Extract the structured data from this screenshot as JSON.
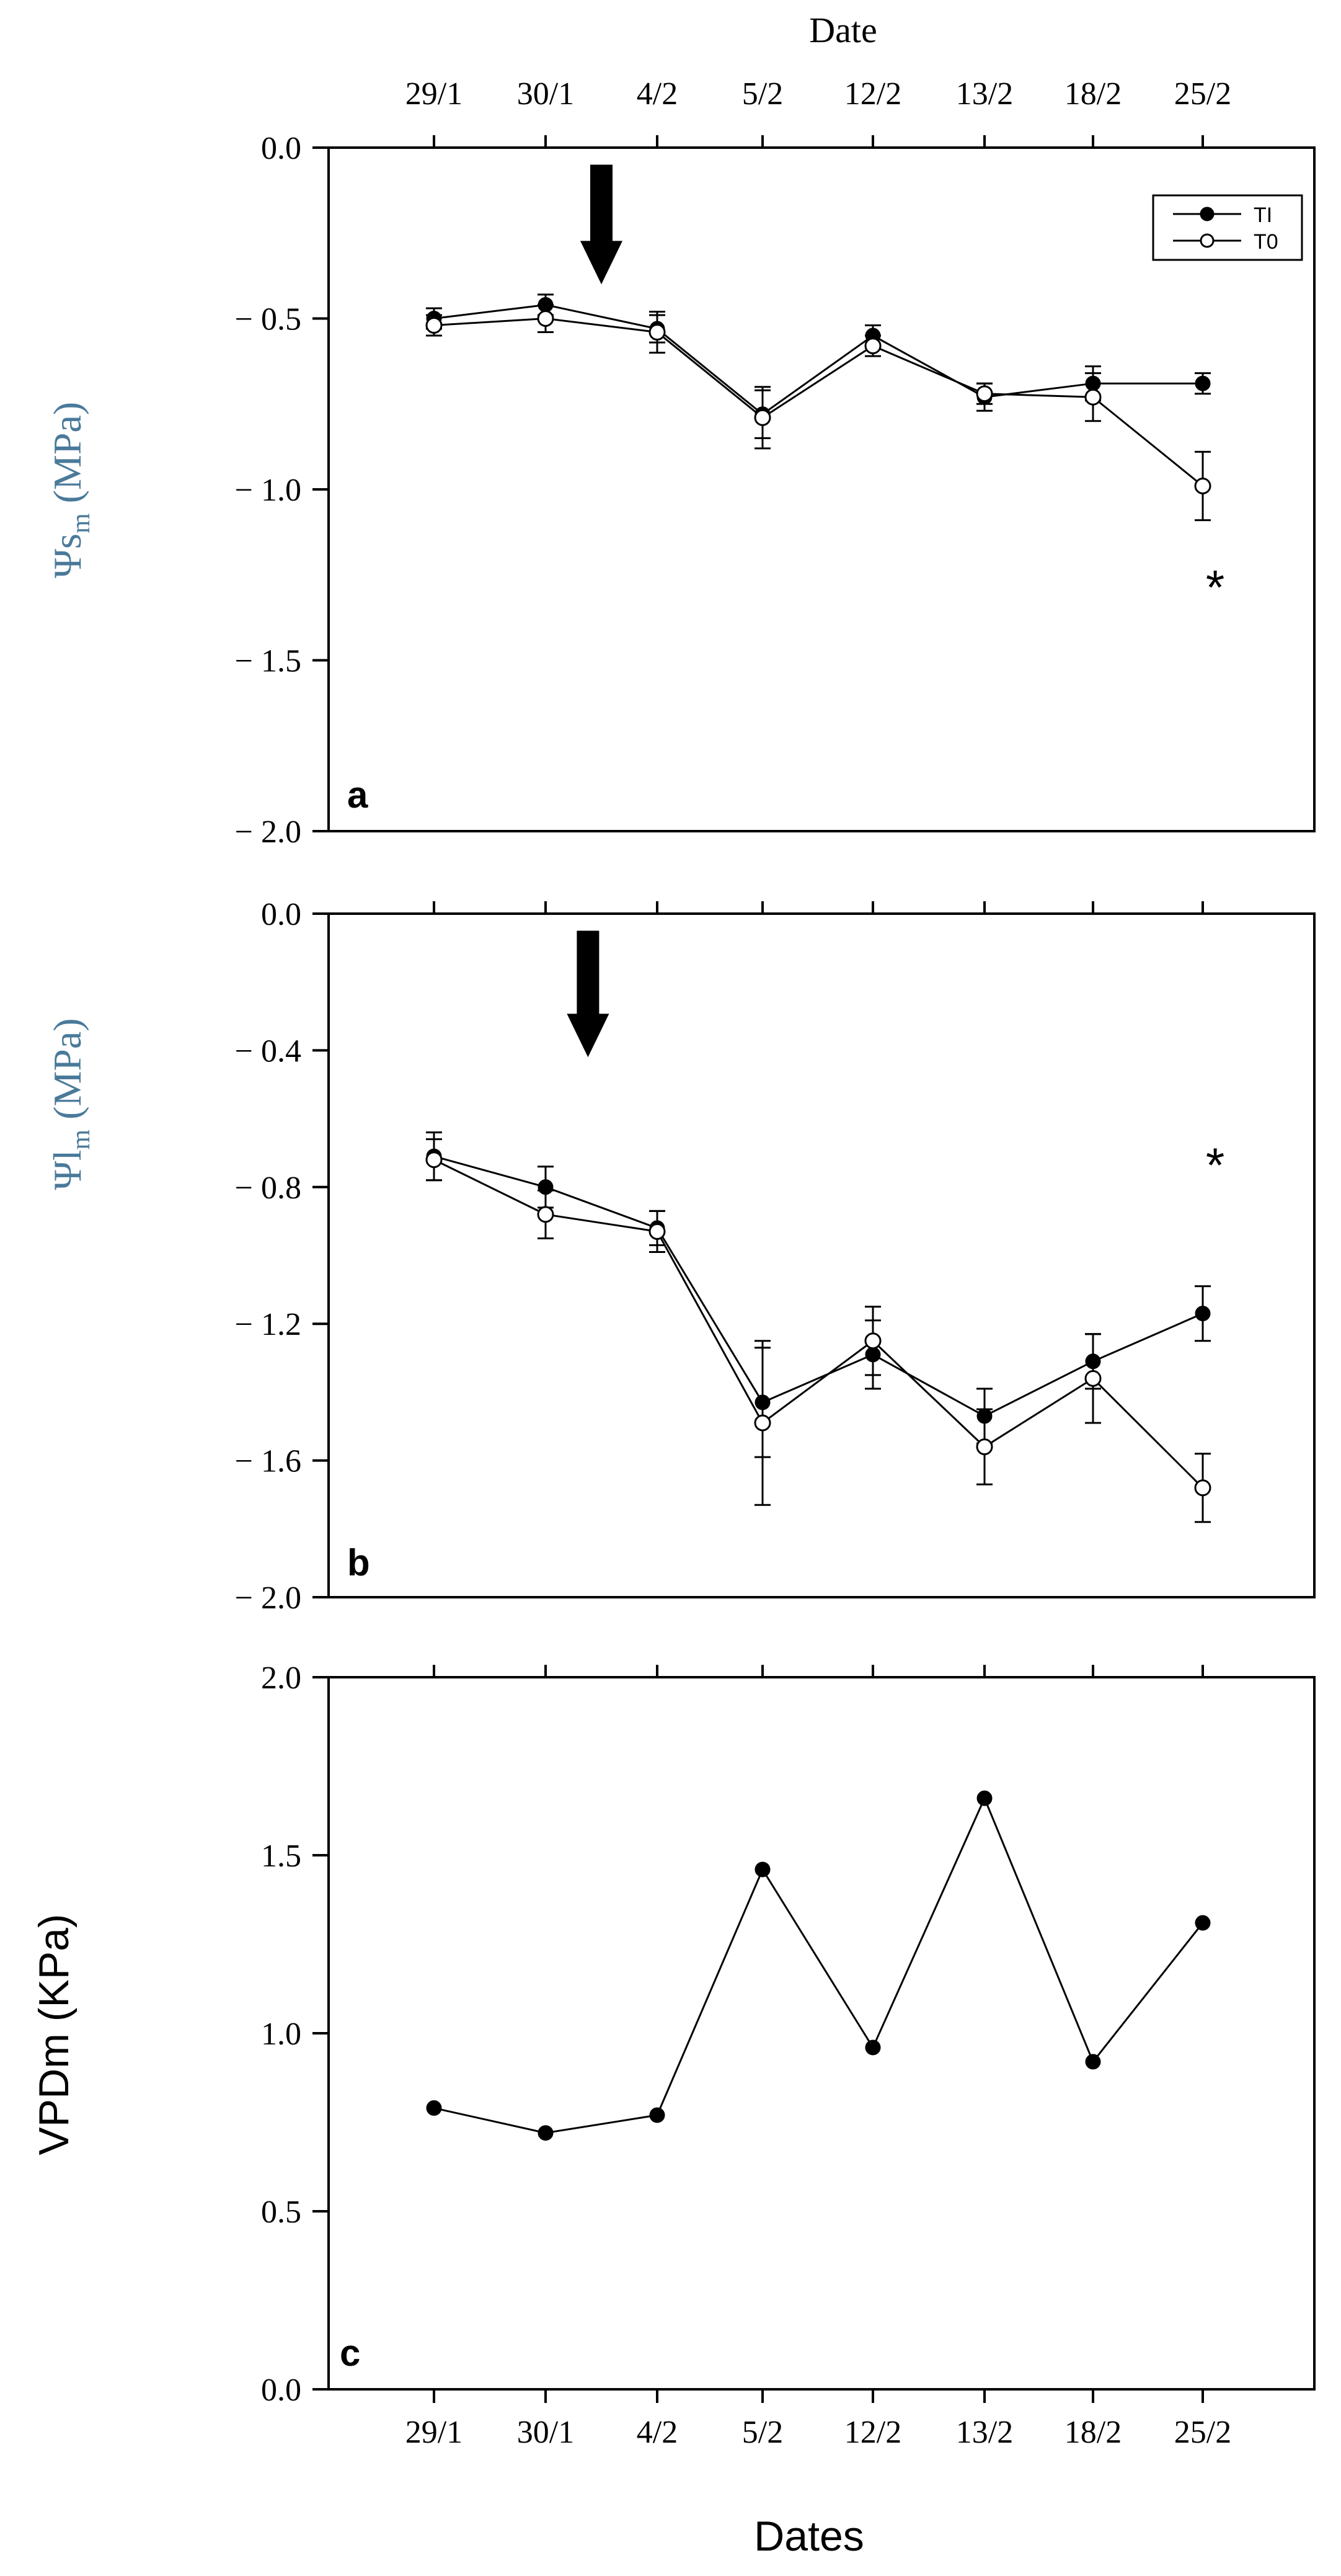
{
  "chart_data": [
    {
      "panel": "a",
      "type": "line",
      "title": "",
      "top_axis_title": "Date",
      "categories": [
        "29/1",
        "30/1",
        "4/2",
        "5/2",
        "12/2",
        "13/2",
        "18/2",
        "25/2"
      ],
      "ylim": [
        -2.0,
        0.0
      ],
      "yticks": [
        0.0,
        -0.5,
        -1.0,
        -1.5,
        -2.0
      ],
      "ytick_labels": [
        "0.0",
        "− 0.5",
        "− 1.0",
        "− 1.5",
        "− 2.0"
      ],
      "ylabel_main": "Ψs",
      "ylabel_sub": "m",
      "ylabel_unit": " (MPa)",
      "grid": false,
      "legend": "top-right",
      "series": [
        {
          "name": "TI",
          "marker": "filled-circle",
          "values": [
            -0.5,
            -0.46,
            -0.53,
            -0.78,
            -0.55,
            -0.73,
            -0.69,
            -0.69
          ],
          "errors": [
            0.03,
            0.03,
            0.04,
            0.07,
            0.03,
            0.04,
            0.05,
            0.03
          ]
        },
        {
          "name": "T0",
          "marker": "open-circle",
          "values": [
            -0.52,
            -0.5,
            -0.54,
            -0.79,
            -0.58,
            -0.72,
            -0.73,
            -0.99
          ],
          "errors": [
            0.03,
            0.04,
            0.06,
            0.09,
            0.03,
            0.03,
            0.07,
            0.1
          ]
        }
      ],
      "annotations": [
        {
          "type": "arrow",
          "x": 1.5,
          "y_from": -0.05,
          "y_to": -0.4
        },
        {
          "type": "text",
          "text": "*",
          "x": 7,
          "y": -1.28
        }
      ],
      "panel_label": "a"
    },
    {
      "panel": "b",
      "type": "line",
      "title": "",
      "categories": [
        "29/1",
        "30/1",
        "4/2",
        "5/2",
        "12/2",
        "13/2",
        "18/2",
        "25/2"
      ],
      "ylim": [
        -2.0,
        0.0
      ],
      "yticks": [
        0.0,
        -0.4,
        -0.8,
        -1.2,
        -1.6,
        -2.0
      ],
      "ytick_labels": [
        "0.0",
        "− 0.4",
        "− 0.8",
        "− 1.2",
        "− 1.6",
        "− 2.0"
      ],
      "ylabel_main": "Ψl",
      "ylabel_sub": "m",
      "ylabel_unit": " (MPa)",
      "grid": false,
      "series": [
        {
          "name": "TI",
          "marker": "filled-circle",
          "values": [
            -0.71,
            -0.8,
            -0.92,
            -1.43,
            -1.29,
            -1.47,
            -1.31,
            -1.17
          ],
          "errors": [
            0.07,
            0.06,
            0.05,
            0.16,
            0.1,
            0.08,
            0.08,
            0.08
          ]
        },
        {
          "name": "T0",
          "marker": "open-circle",
          "values": [
            -0.72,
            -0.88,
            -0.93,
            -1.49,
            -1.25,
            -1.56,
            -1.36,
            -1.68
          ],
          "errors": [
            0.06,
            0.07,
            0.06,
            0.24,
            0.1,
            0.11,
            0.13,
            0.1
          ]
        }
      ],
      "annotations": [
        {
          "type": "arrow",
          "x": 1.38,
          "y_from": -0.05,
          "y_to": -0.42
        },
        {
          "type": "text",
          "text": "*",
          "x": 7,
          "y": -0.73
        }
      ],
      "panel_label": "b"
    },
    {
      "panel": "c",
      "type": "line",
      "title": "",
      "categories": [
        "29/1",
        "30/1",
        "4/2",
        "5/2",
        "12/2",
        "13/2",
        "18/2",
        "25/2"
      ],
      "ylim": [
        0.0,
        2.0
      ],
      "yticks": [
        0.0,
        0.5,
        1.0,
        1.5,
        2.0
      ],
      "ytick_labels": [
        "0.0",
        "0.5",
        "1.0",
        "1.5",
        "2.0"
      ],
      "xlabel": "Dates",
      "ylabel": "VPDm (KPa)",
      "grid": false,
      "series": [
        {
          "name": "",
          "marker": "filled-circle",
          "values": [
            0.79,
            0.72,
            0.77,
            1.46,
            0.96,
            1.66,
            0.92,
            1.31
          ]
        }
      ],
      "panel_label": "c"
    }
  ]
}
